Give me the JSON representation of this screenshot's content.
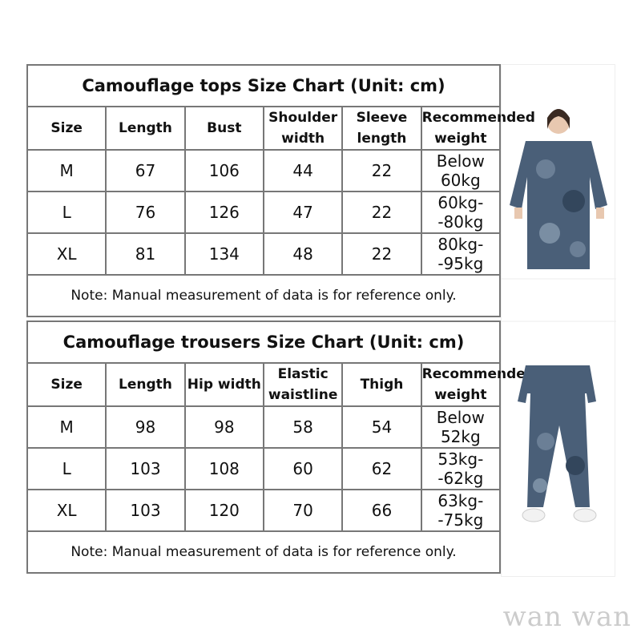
{
  "tops": {
    "title": "Camouflage tops Size Chart (Unit: cm)",
    "headers": [
      "Size",
      "Length",
      "Bust",
      "Shoulder width",
      "Sleeve length",
      "Recommended weight"
    ],
    "rows": [
      [
        "M",
        "67",
        "106",
        "44",
        "22",
        "Below 60kg"
      ],
      [
        "L",
        "76",
        "126",
        "47",
        "22",
        "60kg--80kg"
      ],
      [
        "XL",
        "81",
        "134",
        "48",
        "22",
        "80kg--95kg"
      ]
    ],
    "note": "Note: Manual measurement of data is for reference only."
  },
  "trousers": {
    "title": "Camouflage trousers Size Chart (Unit: cm)",
    "headers": [
      "Size",
      "Length",
      "Hip width",
      "Elastic waistline",
      "Thigh",
      "Recommended weight"
    ],
    "rows": [
      [
        "M",
        "98",
        "98",
        "58",
        "54",
        "Below 52kg"
      ],
      [
        "L",
        "103",
        "108",
        "60",
        "62",
        "53kg--62kg"
      ],
      [
        "XL",
        "103",
        "120",
        "70",
        "66",
        "63kg--75kg"
      ]
    ],
    "note": "Note: Manual measurement of data is for reference only."
  },
  "watermark": "wan wan",
  "colors": {
    "camo": "#4a5f78",
    "border": "#777777"
  }
}
